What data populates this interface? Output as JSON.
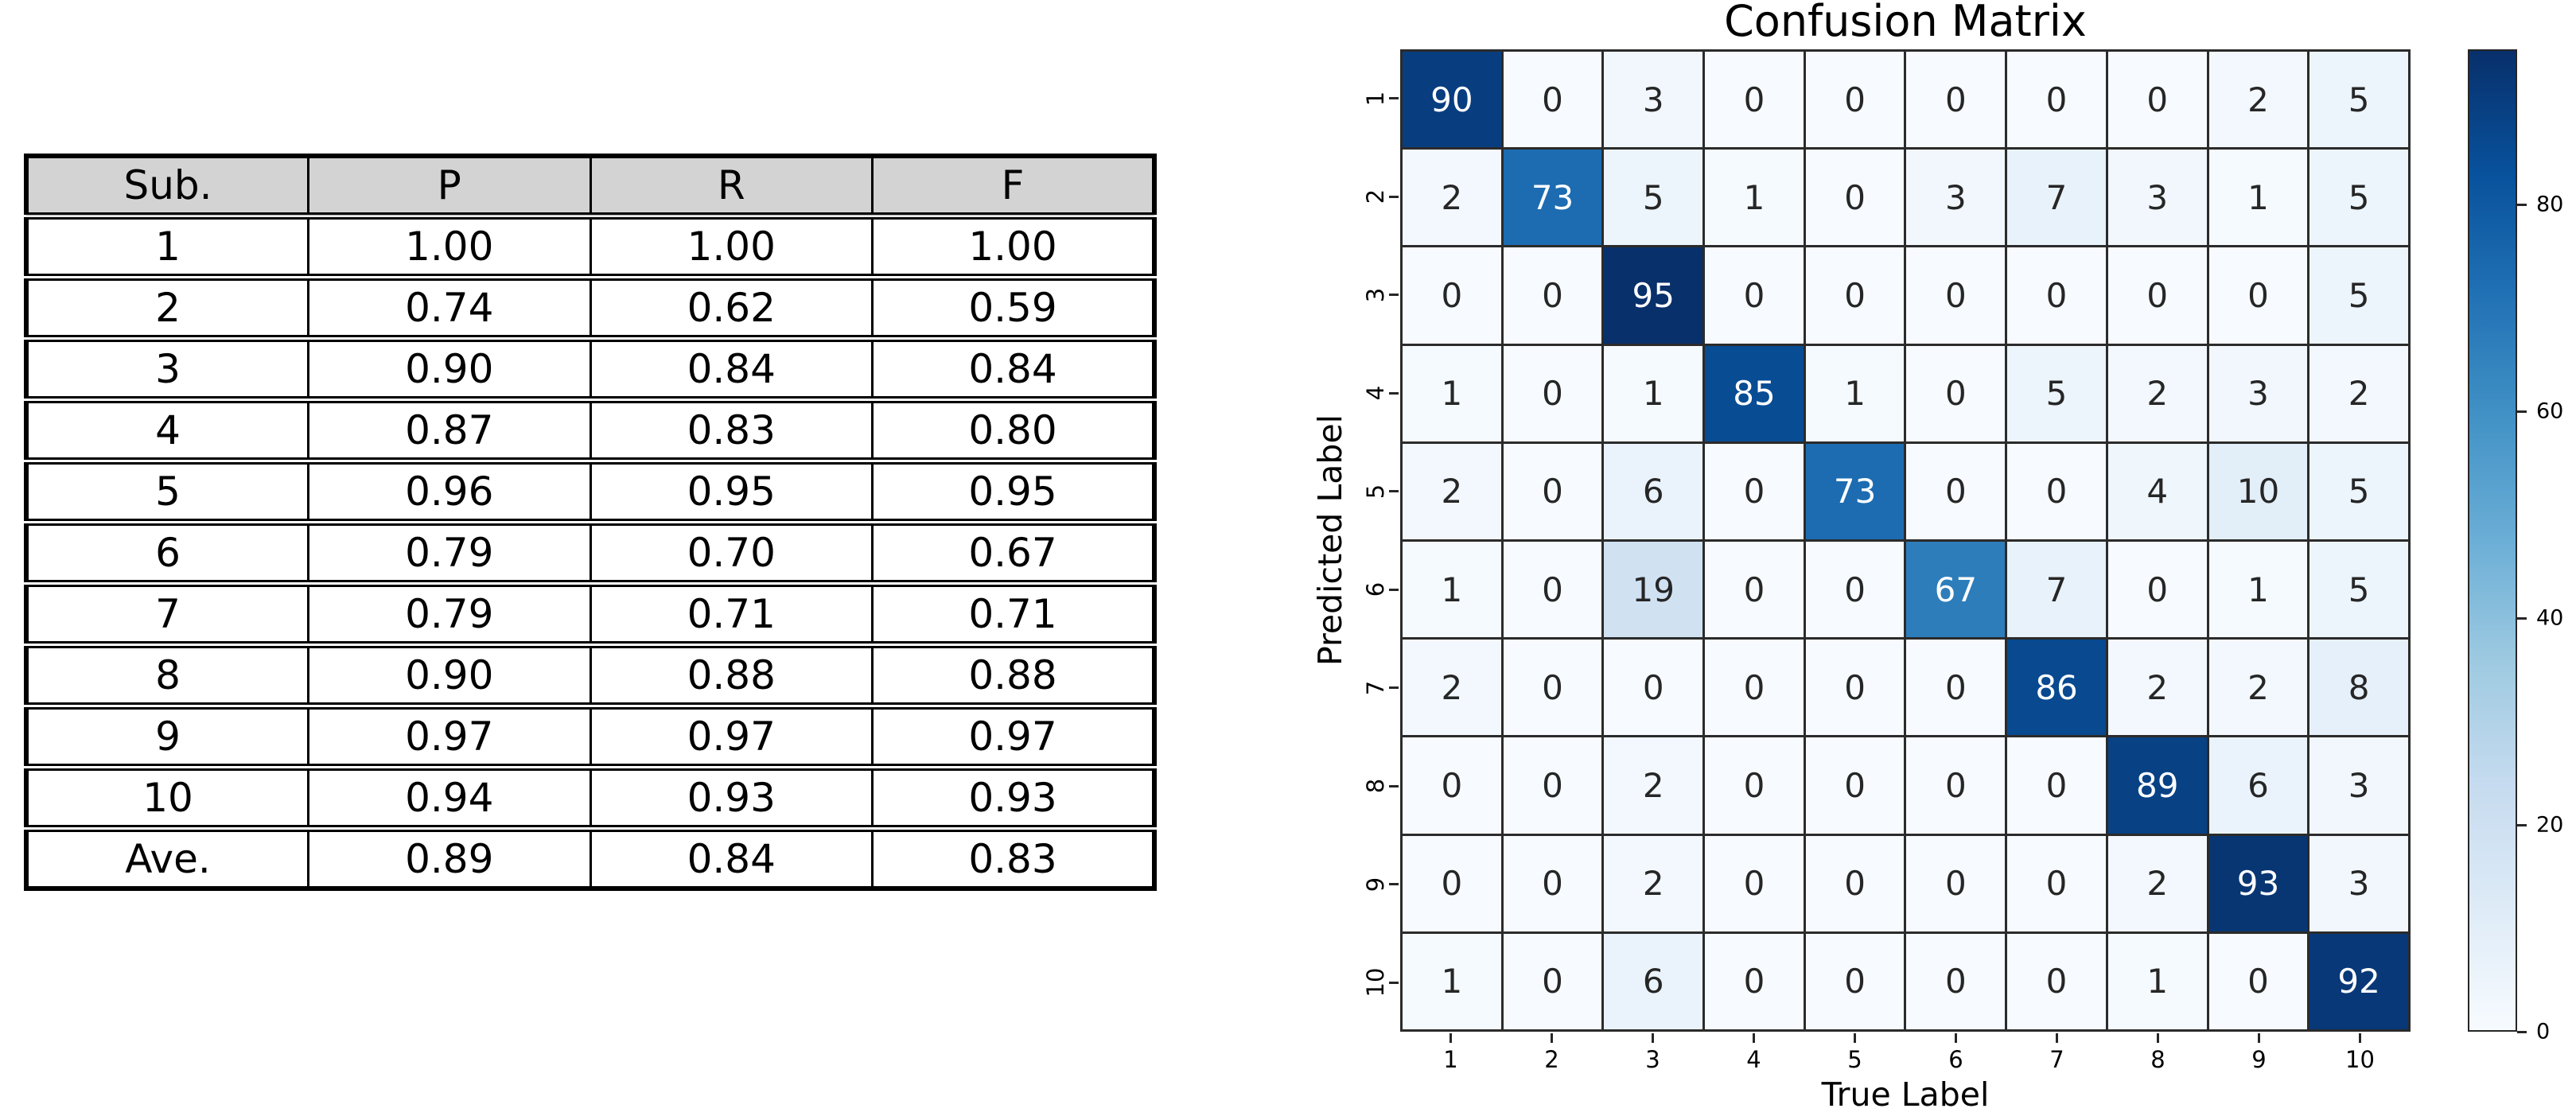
{
  "chart_data": [
    {
      "type": "table",
      "columns": [
        "Sub.",
        "P",
        "R",
        "F"
      ],
      "rows": [
        [
          "1",
          "1.00",
          "1.00",
          "1.00"
        ],
        [
          "2",
          "0.74",
          "0.62",
          "0.59"
        ],
        [
          "3",
          "0.90",
          "0.84",
          "0.84"
        ],
        [
          "4",
          "0.87",
          "0.83",
          "0.80"
        ],
        [
          "5",
          "0.96",
          "0.95",
          "0.95"
        ],
        [
          "6",
          "0.79",
          "0.70",
          "0.67"
        ],
        [
          "7",
          "0.79",
          "0.71",
          "0.71"
        ],
        [
          "8",
          "0.90",
          "0.88",
          "0.88"
        ],
        [
          "9",
          "0.97",
          "0.97",
          "0.97"
        ],
        [
          "10",
          "0.94",
          "0.93",
          "0.93"
        ],
        [
          "Ave.",
          "0.89",
          "0.84",
          "0.83"
        ]
      ],
      "header_bg": "#d3d3d3"
    },
    {
      "type": "heatmap",
      "title": "Confusion Matrix",
      "xlabel": "True Label",
      "ylabel": "Predicted Label",
      "x": [
        "1",
        "2",
        "3",
        "4",
        "5",
        "6",
        "7",
        "8",
        "9",
        "10"
      ],
      "y": [
        "1",
        "2",
        "3",
        "4",
        "5",
        "6",
        "7",
        "8",
        "9",
        "10"
      ],
      "matrix": [
        [
          90,
          0,
          3,
          0,
          0,
          0,
          0,
          0,
          2,
          5
        ],
        [
          2,
          73,
          5,
          1,
          0,
          3,
          7,
          3,
          1,
          5
        ],
        [
          0,
          0,
          95,
          0,
          0,
          0,
          0,
          0,
          0,
          5
        ],
        [
          1,
          0,
          1,
          85,
          1,
          0,
          5,
          2,
          3,
          2
        ],
        [
          2,
          0,
          6,
          0,
          73,
          0,
          0,
          4,
          10,
          5
        ],
        [
          1,
          0,
          19,
          0,
          0,
          67,
          7,
          0,
          1,
          5
        ],
        [
          2,
          0,
          0,
          0,
          0,
          0,
          86,
          2,
          2,
          8
        ],
        [
          0,
          0,
          2,
          0,
          0,
          0,
          0,
          89,
          6,
          3
        ],
        [
          0,
          0,
          2,
          0,
          0,
          0,
          0,
          2,
          93,
          3
        ],
        [
          1,
          0,
          6,
          0,
          0,
          0,
          0,
          1,
          0,
          92
        ]
      ],
      "vmin": 0,
      "vmax": 95,
      "colormap": "Blues",
      "colormap_stops": [
        [
          0.0,
          "#f7fbff"
        ],
        [
          0.125,
          "#deebf7"
        ],
        [
          0.25,
          "#c6dbef"
        ],
        [
          0.375,
          "#9ecae1"
        ],
        [
          0.5,
          "#6baed6"
        ],
        [
          0.625,
          "#4292c6"
        ],
        [
          0.75,
          "#2171b5"
        ],
        [
          0.875,
          "#08519c"
        ],
        [
          1.0,
          "#08306b"
        ]
      ],
      "colorbar_ticks": [
        0,
        20,
        40,
        60,
        80
      ],
      "grid_line_color": "#2b2b2b",
      "text_dark": "#262626",
      "text_light": "#ffffff",
      "legend_position": "right",
      "grid": "on"
    }
  ]
}
